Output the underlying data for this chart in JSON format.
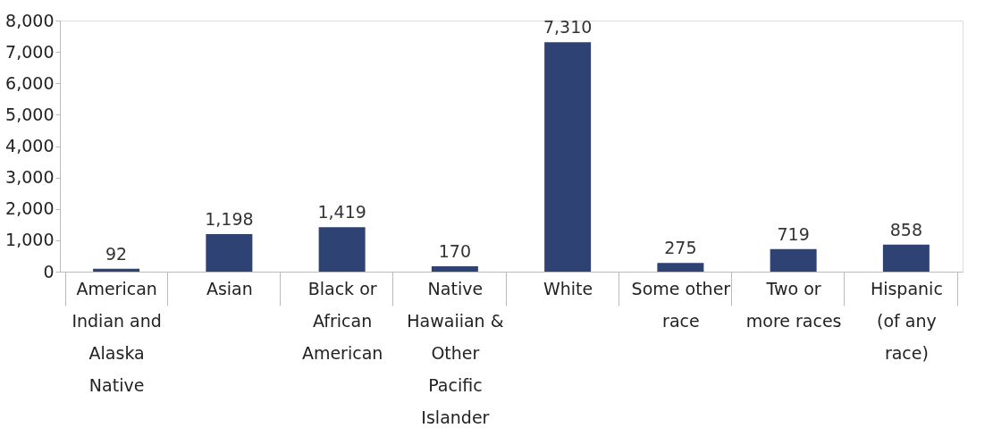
{
  "chart_data": {
    "type": "bar",
    "categories": [
      "American Indian and Alaska Native",
      "Asian",
      "Black or African American",
      "Native Hawaiian & Other Pacific Islander",
      "White",
      "Some other race",
      "Two or more races",
      "Hispanic (of any race)"
    ],
    "values": [
      92,
      1198,
      1419,
      170,
      7310,
      275,
      719,
      858
    ],
    "color": "#2e4374",
    "value_labels": [
      "92",
      "1,198",
      "1,419",
      "170",
      "7,310",
      "275",
      "719",
      "858"
    ],
    "ylim": [
      0,
      8000
    ],
    "yticks": [
      0,
      {
        "value": 1000,
        "label": "1,000"
      },
      {
        "value": 2000,
        "label": "2,000"
      },
      {
        "value": 3000,
        "label": "3,000"
      },
      {
        "value": 4000,
        "label": "4,000"
      },
      {
        "value": 5000,
        "label": "5,000"
      },
      {
        "value": 6000,
        "label": "6,000"
      },
      {
        "value": 7000,
        "label": "7,000"
      },
      {
        "value": 8000,
        "label": "8,000"
      }
    ],
    "grid": false
  }
}
